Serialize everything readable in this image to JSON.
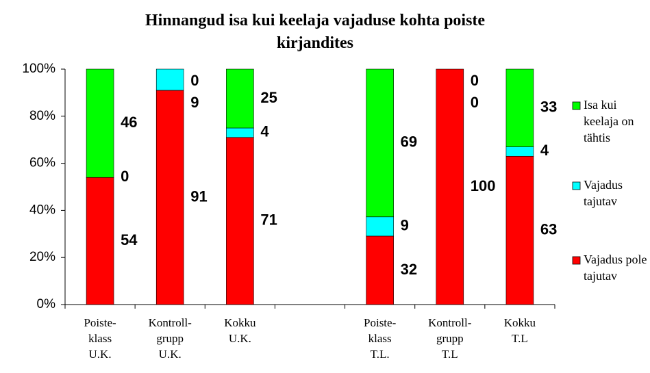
{
  "chart_data": {
    "type": "bar",
    "stacking": "percent",
    "title": "Hinnangud isa kui keelaja vajaduse kohta  poiste kirjandites",
    "categories": [
      [
        "Poiste-",
        "klass",
        "U.K."
      ],
      [
        "Kontroll-",
        "grupp",
        "U.K."
      ],
      [
        "Kokku",
        "U.K."
      ],
      null,
      [
        "Poiste-",
        "klass",
        "T.L."
      ],
      [
        "Kontroll-",
        "grupp",
        "T.L"
      ],
      [
        "Kokku",
        "T.L"
      ]
    ],
    "series": [
      {
        "name": "Vajadus pole tajutav",
        "color": "#ff0000",
        "values": [
          54,
          91,
          71,
          null,
          32,
          100,
          63
        ]
      },
      {
        "name": "Vajadus tajutav",
        "color": "#00ffff",
        "values": [
          0,
          9,
          4,
          null,
          9,
          0,
          4
        ]
      },
      {
        "name": "Isa kui keelaja on tähtis",
        "color": "#00ff00",
        "values": [
          46,
          0,
          25,
          null,
          69,
          0,
          33
        ]
      }
    ],
    "ylim": [
      0,
      100
    ],
    "yticks": [
      {
        "value": 0,
        "label": "0%"
      },
      {
        "value": 20,
        "label": "20%"
      },
      {
        "value": 40,
        "label": "40%"
      },
      {
        "value": 60,
        "label": "60%"
      },
      {
        "value": 80,
        "label": "80%"
      },
      {
        "value": 100,
        "label": "100%"
      }
    ],
    "legend": "right"
  }
}
